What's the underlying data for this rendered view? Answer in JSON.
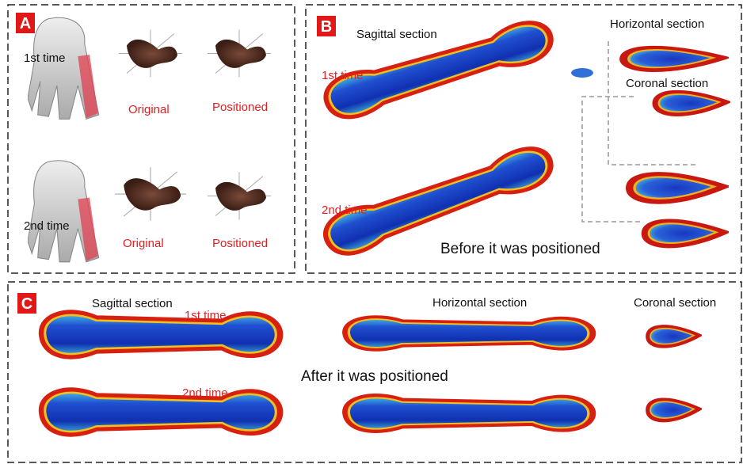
{
  "panel_a": {
    "label": "A",
    "rows": [
      {
        "time": "1st time",
        "original": "Original",
        "positioned": "Positioned"
      },
      {
        "time": "2nd time",
        "original": "Original",
        "positioned": "Positioned"
      }
    ]
  },
  "panel_b": {
    "label": "B",
    "sagittal": "Sagittal section",
    "horizontal": "Horizontal section",
    "coronal": "Coronal section",
    "times": [
      "1st time",
      "2nd time"
    ],
    "caption": "Before it was positioned"
  },
  "panel_c": {
    "label": "C",
    "sagittal": "Sagittal section",
    "horizontal": "Horizontal section",
    "coronal": "Coronal section",
    "times": [
      "1st time",
      "2nd time"
    ],
    "caption": "After it was positioned"
  }
}
